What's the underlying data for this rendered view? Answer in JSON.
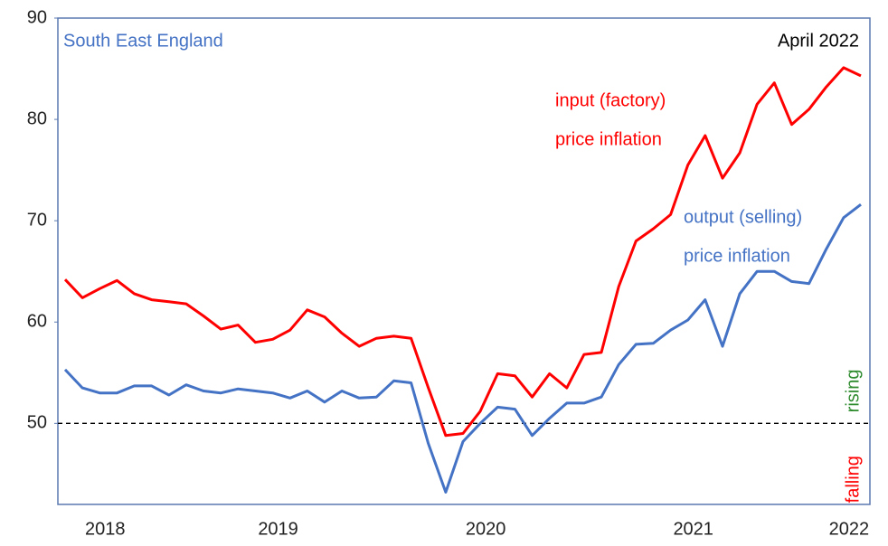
{
  "chart_data": {
    "type": "line",
    "title": "South East England",
    "subtitle": "April 2022",
    "categories": [
      null,
      null,
      "2018",
      null,
      null,
      null,
      null,
      null,
      null,
      null,
      null,
      null,
      "2019",
      null,
      null,
      null,
      null,
      null,
      null,
      null,
      null,
      null,
      null,
      null,
      "2020",
      null,
      null,
      null,
      null,
      null,
      null,
      null,
      null,
      null,
      null,
      null,
      "2021",
      null,
      null,
      null,
      null,
      null,
      null,
      null,
      null,
      "2022",
      null
    ],
    "series": [
      {
        "name": "input (factory) price inflation",
        "label_lines": [
          "input (factory)",
          "price inflation"
        ],
        "color": "#ff0000",
        "values": [
          64.2,
          62.4,
          63.3,
          64.1,
          62.8,
          62.2,
          62.0,
          61.8,
          60.6,
          59.3,
          59.7,
          58.0,
          58.3,
          59.2,
          61.2,
          60.5,
          58.9,
          57.6,
          58.4,
          58.6,
          58.4,
          53.5,
          48.8,
          49.0,
          51.2,
          54.9,
          54.7,
          52.6,
          54.9,
          53.5,
          56.8,
          57.0,
          63.5,
          68.0,
          69.2,
          70.6,
          75.5,
          78.4,
          74.2,
          76.7,
          81.5,
          83.6,
          79.5,
          81.0,
          83.2,
          85.1,
          84.3
        ]
      },
      {
        "name": "output (selling) price inflation",
        "label_lines": [
          "output (selling)",
          "price inflation"
        ],
        "color": "#4472c4",
        "values": [
          55.3,
          53.5,
          53.0,
          53.0,
          53.7,
          53.7,
          52.8,
          53.8,
          53.2,
          53.0,
          53.4,
          53.2,
          53.0,
          52.5,
          53.2,
          52.1,
          53.2,
          52.5,
          52.6,
          54.2,
          54.0,
          48.0,
          43.2,
          48.2,
          50.0,
          51.6,
          51.4,
          48.8,
          50.5,
          52.0,
          52.0,
          52.6,
          55.8,
          57.8,
          57.9,
          59.2,
          60.2,
          62.2,
          57.6,
          62.8,
          65.0,
          65.0,
          64.0,
          63.8,
          67.2,
          70.3,
          71.6
        ]
      }
    ],
    "ylim": [
      42,
      90
    ],
    "yticks": [
      50,
      60,
      70,
      80,
      90
    ],
    "reference_line": 50,
    "above_label": {
      "text": "rising",
      "color": "#2e8b2e"
    },
    "below_label": {
      "text": "falling",
      "color": "#ff0000"
    },
    "grid": false
  }
}
